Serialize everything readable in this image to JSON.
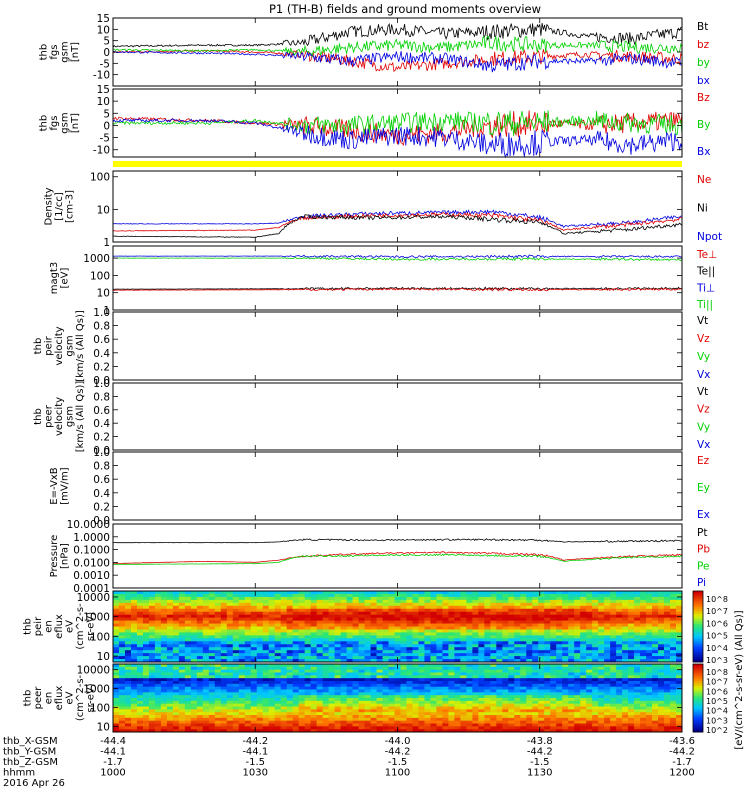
{
  "title": "P1 (TH-B) fields and ground moments overview",
  "colors": {
    "black": "#000000",
    "red": "#e00000",
    "green": "#00d000",
    "blue": "#0000e0",
    "yellow": "#ffff00"
  },
  "chart_data": [
    {
      "id": "fgs_gsm",
      "type": "line",
      "ylabel": [
        "thb",
        "fgs",
        "gsm",
        "[nT]"
      ],
      "ylim": [
        -15,
        15
      ],
      "ytick_labels": [
        "15",
        "10",
        "5",
        "0",
        "-5",
        "-10"
      ],
      "legend": [
        {
          "name": "Bt",
          "color": "#000000"
        },
        {
          "name": "bz",
          "color": "#e00000"
        },
        {
          "name": "by",
          "color": "#00d000"
        },
        {
          "name": "bx",
          "color": "#0000e0"
        }
      ],
      "series": [
        {
          "name": "Bt",
          "color": "#000000",
          "x": [
            0,
            20,
            30,
            40,
            50,
            60,
            70,
            80,
            90,
            100,
            110,
            120
          ],
          "y": [
            2.5,
            3,
            3,
            4,
            9,
            10,
            8,
            9,
            10,
            7,
            6,
            9
          ]
        },
        {
          "name": "bz",
          "color": "#e00000",
          "x": [
            0,
            20,
            30,
            40,
            50,
            60,
            70,
            80,
            90,
            100,
            110,
            120
          ],
          "y": [
            0,
            0.5,
            0,
            -1,
            -4,
            -7,
            -5,
            -3,
            -2,
            -1,
            -2,
            -3
          ]
        },
        {
          "name": "by",
          "color": "#00d000",
          "x": [
            0,
            20,
            30,
            40,
            50,
            60,
            70,
            80,
            90,
            100,
            110,
            120
          ],
          "y": [
            1,
            0.5,
            1,
            0,
            2,
            3,
            2,
            4,
            3,
            3,
            2,
            2
          ]
        },
        {
          "name": "bx",
          "color": "#0000e0",
          "x": [
            0,
            20,
            30,
            40,
            50,
            60,
            70,
            80,
            90,
            100,
            110,
            120
          ],
          "y": [
            0,
            -0.5,
            -1,
            -2,
            -4,
            -2,
            -3,
            -6,
            -4,
            -4,
            -3,
            -5
          ]
        }
      ]
    },
    {
      "id": "fgs_gsm2",
      "type": "line",
      "ylabel": [
        "thb",
        "fgs",
        "gsm",
        "[nT]"
      ],
      "ylim": [
        -13,
        15
      ],
      "ytick_labels": [
        "15",
        "10",
        "5",
        "0",
        "-5",
        "-10"
      ],
      "legend": [
        {
          "name": "Bz",
          "color": "#e00000"
        },
        {
          "name": "By",
          "color": "#00d000"
        },
        {
          "name": "Bx",
          "color": "#0000e0"
        }
      ],
      "series": [
        {
          "name": "Bz",
          "color": "#e00000",
          "x": [
            0,
            20,
            30,
            40,
            50,
            60,
            70,
            80,
            90,
            100,
            110,
            120
          ],
          "y": [
            3,
            2,
            1,
            0,
            -2,
            -4,
            -3,
            0,
            1,
            0,
            1,
            2
          ]
        },
        {
          "name": "By",
          "color": "#00d000",
          "x": [
            0,
            20,
            30,
            40,
            50,
            60,
            70,
            80,
            90,
            100,
            110,
            120
          ],
          "y": [
            1,
            1,
            2,
            0,
            0,
            1,
            2,
            1,
            1,
            2,
            1,
            0
          ]
        },
        {
          "name": "Bx",
          "color": "#0000e0",
          "x": [
            0,
            20,
            30,
            40,
            50,
            60,
            70,
            80,
            90,
            100,
            110,
            120
          ],
          "y": [
            2,
            2,
            1,
            -3,
            -6,
            -4,
            -5,
            -8,
            -7,
            -6,
            -8,
            -6
          ]
        }
      ]
    },
    {
      "id": "density",
      "type": "line",
      "scale": "log",
      "ylabel": [
        "Density",
        "[1/cc]",
        "[cm-3]"
      ],
      "ylim": [
        1,
        150
      ],
      "ytick_labels": [
        "100",
        "10",
        "1"
      ],
      "legend": [
        {
          "name": "Ne",
          "color": "#e00000"
        },
        {
          "name": "Ni",
          "color": "#000000"
        },
        {
          "name": "Npot",
          "color": "#0000e0"
        }
      ],
      "series": [
        {
          "name": "Npot",
          "color": "#0000e0",
          "x": [
            0,
            30,
            35,
            40,
            55,
            70,
            80,
            90,
            95,
            110,
            120
          ],
          "y": [
            3.6,
            3.6,
            3.8,
            6,
            7.5,
            8,
            8.5,
            5.5,
            3,
            4,
            6
          ]
        },
        {
          "name": "Ne",
          "color": "#e00000",
          "x": [
            0,
            30,
            35,
            40,
            55,
            70,
            80,
            90,
            95,
            110,
            120
          ],
          "y": [
            2.2,
            2.3,
            2.8,
            5.5,
            6.5,
            7,
            6.5,
            4.5,
            2.3,
            3.5,
            5
          ]
        },
        {
          "name": "Ni",
          "color": "#000000",
          "x": [
            0,
            30,
            35,
            40,
            55,
            70,
            80,
            90,
            95,
            110,
            120
          ],
          "y": [
            1.5,
            1.4,
            1.8,
            6,
            5.5,
            6,
            5,
            4,
            1.8,
            2.5,
            3.5
          ]
        }
      ]
    },
    {
      "id": "temperature",
      "type": "line",
      "scale": "log",
      "ylabel": [
        "magt3",
        "[eV]"
      ],
      "ylim": [
        1,
        5000
      ],
      "ytick_labels": [
        "1000",
        "100",
        "10",
        "1"
      ],
      "legend": [
        {
          "name": "Te⊥",
          "color": "#e00000"
        },
        {
          "name": "Te||",
          "color": "#000000"
        },
        {
          "name": "Ti⊥",
          "color": "#0000e0"
        },
        {
          "name": "Ti||",
          "color": "#00d000"
        }
      ],
      "series": [
        {
          "name": "Ti⊥",
          "color": "#0000e0",
          "x": [
            0,
            40,
            60,
            90,
            120
          ],
          "y": [
            1300,
            1300,
            1200,
            1250,
            1200
          ]
        },
        {
          "name": "Ti||",
          "color": "#00d000",
          "x": [
            0,
            40,
            60,
            90,
            120
          ],
          "y": [
            1000,
            1000,
            850,
            900,
            800
          ]
        },
        {
          "name": "Te||",
          "color": "#000000",
          "x": [
            0,
            40,
            60,
            90,
            120
          ],
          "y": [
            16,
            17,
            18,
            17,
            18
          ]
        },
        {
          "name": "Te⊥",
          "color": "#e00000",
          "x": [
            0,
            40,
            60,
            90,
            120
          ],
          "y": [
            14,
            15,
            16,
            15,
            16
          ]
        }
      ]
    },
    {
      "id": "peir_velocity",
      "type": "line",
      "ylabel": [
        "thb",
        "peir",
        "velocity",
        "gsm",
        "[km/s (All Qs)]"
      ],
      "ylim": [
        0,
        1
      ],
      "ytick_labels": [
        "1.0",
        "0.8",
        "0.6",
        "0.4",
        "0.2",
        "0.0"
      ],
      "legend": [
        {
          "name": "Vt",
          "color": "#000000"
        },
        {
          "name": "Vz",
          "color": "#e00000"
        },
        {
          "name": "Vy",
          "color": "#00d000"
        },
        {
          "name": "Vx",
          "color": "#0000e0"
        }
      ],
      "series": []
    },
    {
      "id": "peer_velocity",
      "type": "line",
      "ylabel": [
        "thb",
        "peer",
        "velocity",
        "gsm",
        "[km/s (All Qs)]"
      ],
      "ylim": [
        0,
        1
      ],
      "ytick_labels": [
        "1.0",
        "0.8",
        "0.6",
        "0.4",
        "0.2",
        "0.0"
      ],
      "legend": [
        {
          "name": "Vt",
          "color": "#000000"
        },
        {
          "name": "Vz",
          "color": "#e00000"
        },
        {
          "name": "Vy",
          "color": "#00d000"
        },
        {
          "name": "Vx",
          "color": "#0000e0"
        }
      ],
      "series": []
    },
    {
      "id": "efield",
      "type": "line",
      "ylabel": [
        "E=-VxB",
        "[mV/m]"
      ],
      "ylim": [
        0,
        1
      ],
      "ytick_labels": [
        "1.0",
        "0.8",
        "0.6",
        "0.4",
        "0.2",
        "0.0"
      ],
      "legend": [
        {
          "name": "Ez",
          "color": "#e00000"
        },
        {
          "name": "Ey",
          "color": "#00d000"
        },
        {
          "name": "Ex",
          "color": "#0000e0"
        }
      ],
      "series": []
    },
    {
      "id": "pressure",
      "type": "line",
      "scale": "log",
      "ylabel": [
        "Pressure",
        "[nPa]"
      ],
      "ylim": [
        0.0001,
        10
      ],
      "ytick_labels": [
        "10.0000",
        "1.0000",
        "0.1000",
        "0.0100",
        "0.0010",
        "0.0001"
      ],
      "legend": [
        {
          "name": "Pt",
          "color": "#000000"
        },
        {
          "name": "Pb",
          "color": "#e00000"
        },
        {
          "name": "Pe",
          "color": "#00d000"
        },
        {
          "name": "Pi",
          "color": "#0000e0"
        }
      ],
      "series": [
        {
          "name": "Pt",
          "color": "#000000",
          "x": [
            0,
            30,
            35,
            40,
            55,
            70,
            80,
            90,
            95,
            110,
            120
          ],
          "y": [
            0.35,
            0.35,
            0.4,
            0.6,
            0.55,
            0.6,
            0.6,
            0.55,
            0.4,
            0.45,
            0.5
          ]
        },
        {
          "name": "Pb",
          "color": "#e00000",
          "x": [
            0,
            20,
            30,
            35,
            40,
            55,
            70,
            80,
            90,
            95,
            110,
            120
          ],
          "y": [
            0.008,
            0.012,
            0.01,
            0.015,
            0.03,
            0.05,
            0.06,
            0.05,
            0.04,
            0.015,
            0.03,
            0.04
          ]
        },
        {
          "name": "Pe",
          "color": "#00d000",
          "x": [
            0,
            30,
            35,
            40,
            55,
            70,
            80,
            90,
            95,
            110,
            120
          ],
          "y": [
            0.007,
            0.008,
            0.01,
            0.03,
            0.035,
            0.04,
            0.035,
            0.03,
            0.012,
            0.025,
            0.03
          ]
        }
      ]
    },
    {
      "id": "peir_spectrogram",
      "type": "heatmap",
      "scale": "log",
      "ylabel": [
        "thb",
        "peir",
        "en",
        "eflux",
        "eV",
        "(cm^2-s-",
        "sr-eV)"
      ],
      "ylim": [
        5,
        20000
      ],
      "ytick_labels": [
        "10000",
        "1000",
        "100",
        "10"
      ],
      "colorbar_ticks": [
        "10^8",
        "10^7",
        "10^6",
        "10^5",
        "10^4",
        "10^3"
      ]
    },
    {
      "id": "peer_spectrogram",
      "type": "heatmap",
      "scale": "log",
      "ylabel": [
        "thb",
        "peer",
        "en",
        "eflux",
        "eV",
        "(cm^2-s-",
        "sr-eV)"
      ],
      "ylim": [
        5,
        20000
      ],
      "ytick_labels": [
        "10000",
        "1000",
        "100",
        "10"
      ],
      "colorbar_ticks": [
        "10^8",
        "10^7",
        "10^6",
        "10^5",
        "10^4",
        "10^3",
        "10^2"
      ]
    }
  ],
  "colorbar_label": "[eV/(cm^2-s-sr-eV) (All Qs)]",
  "x_axis": {
    "rows": [
      {
        "label": "thb_X-GSM",
        "values": [
          "-44.4",
          "-44.2",
          "-44.0",
          "-43.8",
          "-43.6"
        ]
      },
      {
        "label": "thb_Y-GSM",
        "values": [
          "-44.1",
          "-44.1",
          "-44.2",
          "-44.2",
          "-44.2"
        ]
      },
      {
        "label": "thb_Z-GSM",
        "values": [
          "-1.7",
          "-1.5",
          "-1.5",
          "-1.5",
          "-1.7"
        ]
      },
      {
        "label": "hhmm",
        "values": [
          "1000",
          "1030",
          "1100",
          "1130",
          "1200"
        ]
      }
    ],
    "date": "2016 Apr 26",
    "minutes": [
      0,
      30,
      60,
      90,
      120
    ]
  }
}
